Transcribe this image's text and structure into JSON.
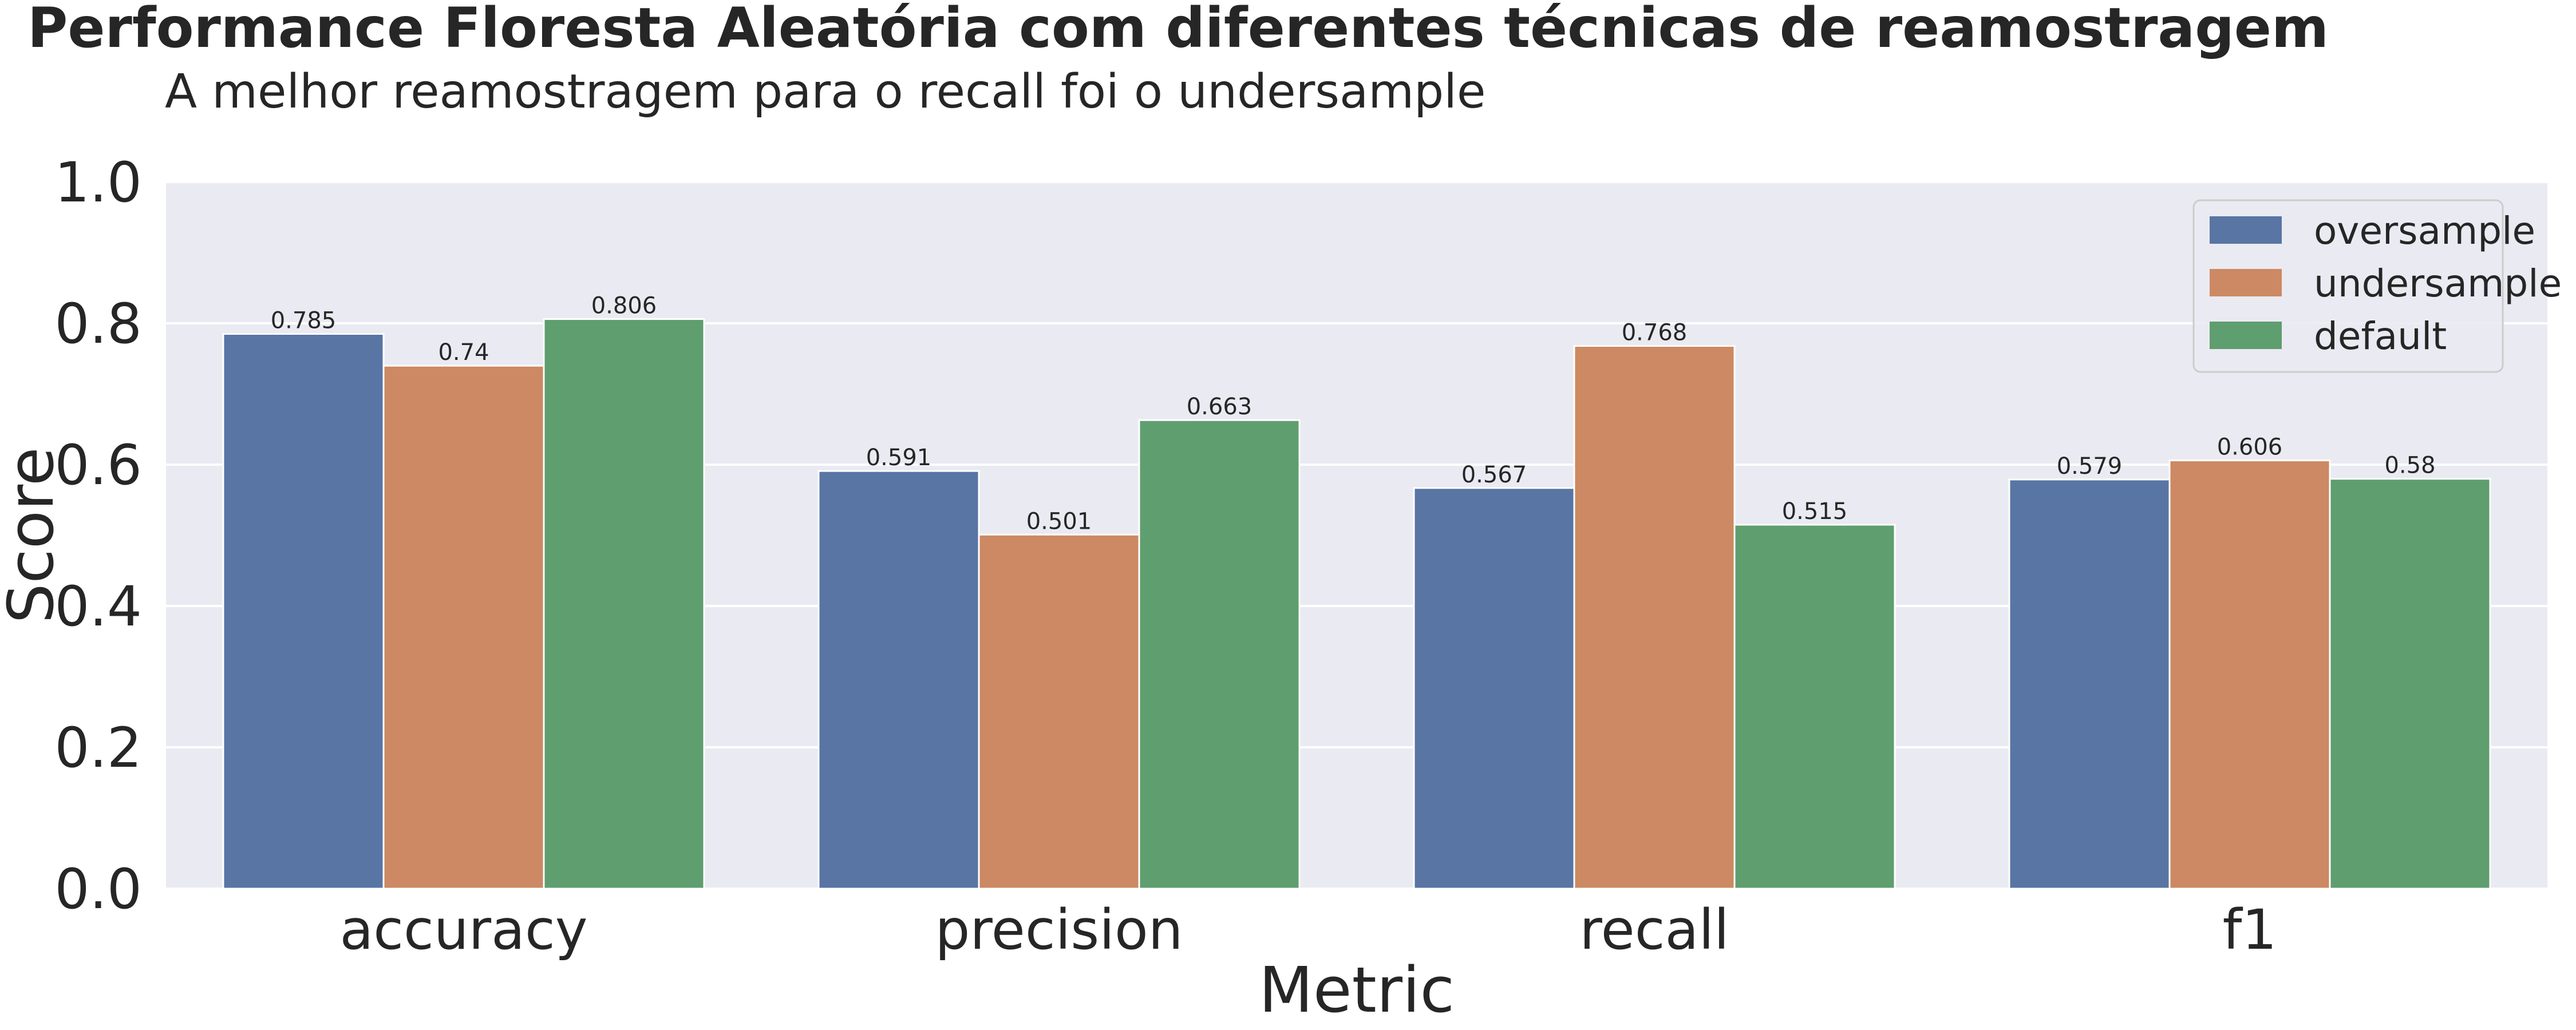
{
  "chart_data": {
    "type": "bar",
    "title": "Performance Floresta Aleatória com diferentes técnicas de reamostragem",
    "subtitle": "A melhor reamostragem para o recall foi o undersample",
    "xlabel": "Metric",
    "ylabel": "Score",
    "ylim": [
      0,
      1.0
    ],
    "yticks": [
      "0.0",
      "0.2",
      "0.4",
      "0.6",
      "0.8",
      "1.0"
    ],
    "categories": [
      "accuracy",
      "precision",
      "recall",
      "f1"
    ],
    "grid": true,
    "legend_position": "top-right",
    "series": [
      {
        "name": "oversample",
        "color": "#5875a4",
        "values": [
          0.785,
          0.591,
          0.567,
          0.579
        ],
        "labels": [
          "0.785",
          "0.591",
          "0.567",
          "0.579"
        ]
      },
      {
        "name": "undersample",
        "color": "#cc8963",
        "values": [
          0.74,
          0.501,
          0.768,
          0.606
        ],
        "labels": [
          "0.74",
          "0.501",
          "0.768",
          "0.606"
        ]
      },
      {
        "name": "default",
        "color": "#5f9e6e",
        "values": [
          0.806,
          0.663,
          0.515,
          0.58
        ],
        "labels": [
          "0.806",
          "0.663",
          "0.515",
          "0.58"
        ]
      }
    ],
    "colors": {
      "background": "#eaeaf2",
      "grid": "#ffffff",
      "text": "#262626"
    }
  }
}
